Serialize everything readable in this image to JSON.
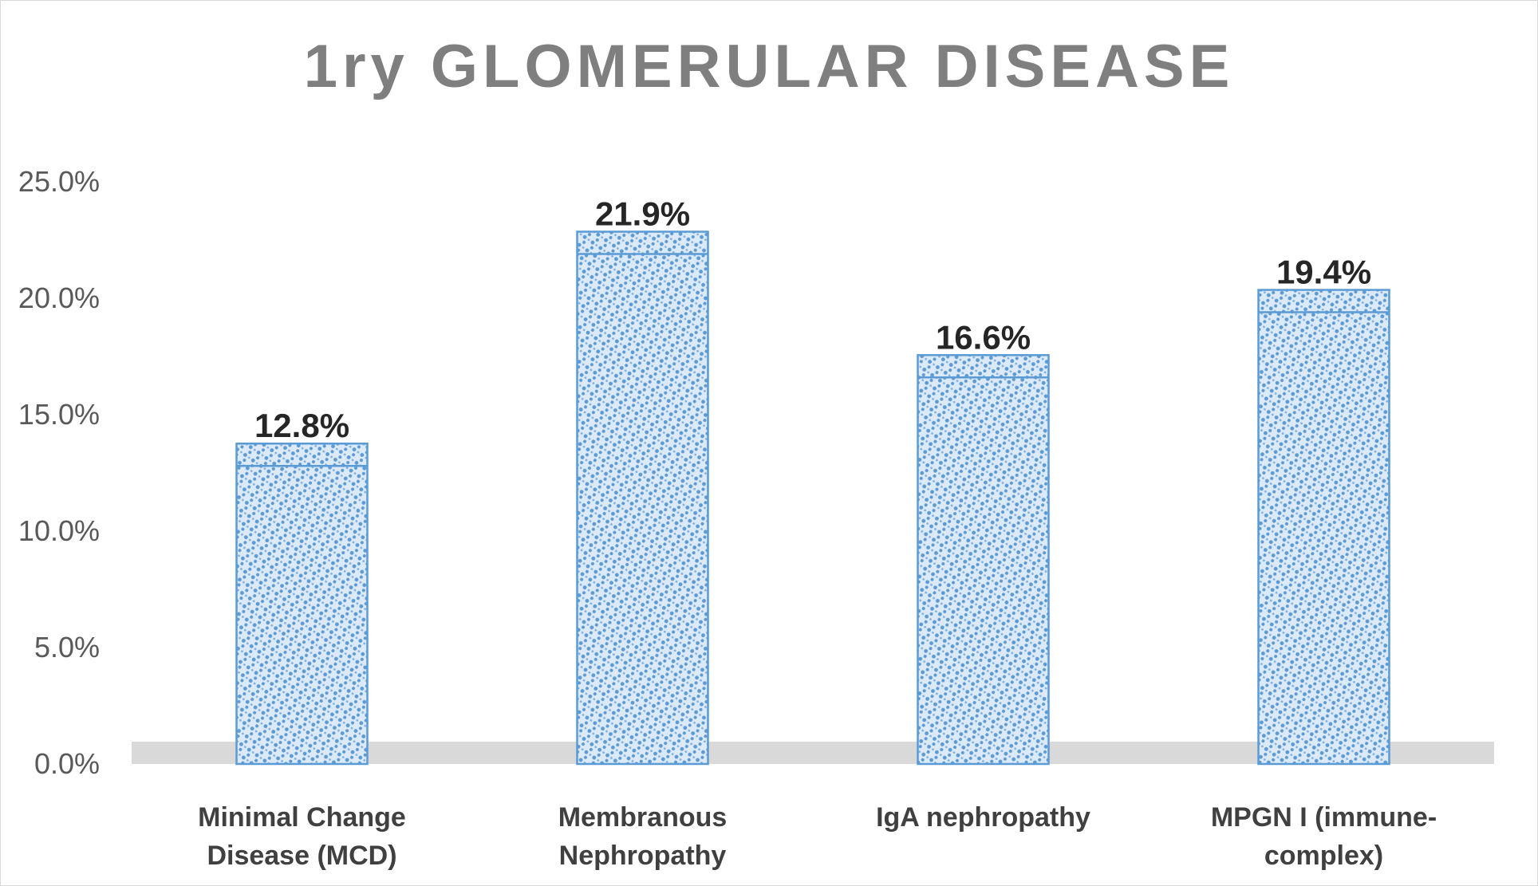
{
  "chart_data": {
    "type": "bar",
    "title": "1ry GLOMERULAR DISEASE",
    "xlabel": "",
    "ylabel": "",
    "categories": [
      [
        "Minimal Change",
        "Disease (MCD)"
      ],
      [
        "Membranous",
        "Nephropathy"
      ],
      [
        "IgA nephropathy"
      ],
      [
        "MPGN I (immune-",
        "complex)"
      ]
    ],
    "values": [
      12.8,
      21.9,
      16.6,
      19.4
    ],
    "data_labels": [
      "12.8%",
      "21.9%",
      "16.6%",
      "19.4%"
    ],
    "ylim": [
      0,
      25
    ],
    "yticks": [
      0,
      5,
      10,
      15,
      20,
      25
    ],
    "ytick_labels": [
      "0.0%",
      "5.0%",
      "10.0%",
      "15.0%",
      "20.0%",
      "25.0%"
    ],
    "grid": false,
    "legend": "none",
    "colors": {
      "bar_fill": "#dce9f7",
      "bar_pattern": "#5b9bd5",
      "bar_border": "#5b9bd5",
      "floor": "#d9d9d9",
      "title": "#7f7f7f"
    }
  }
}
